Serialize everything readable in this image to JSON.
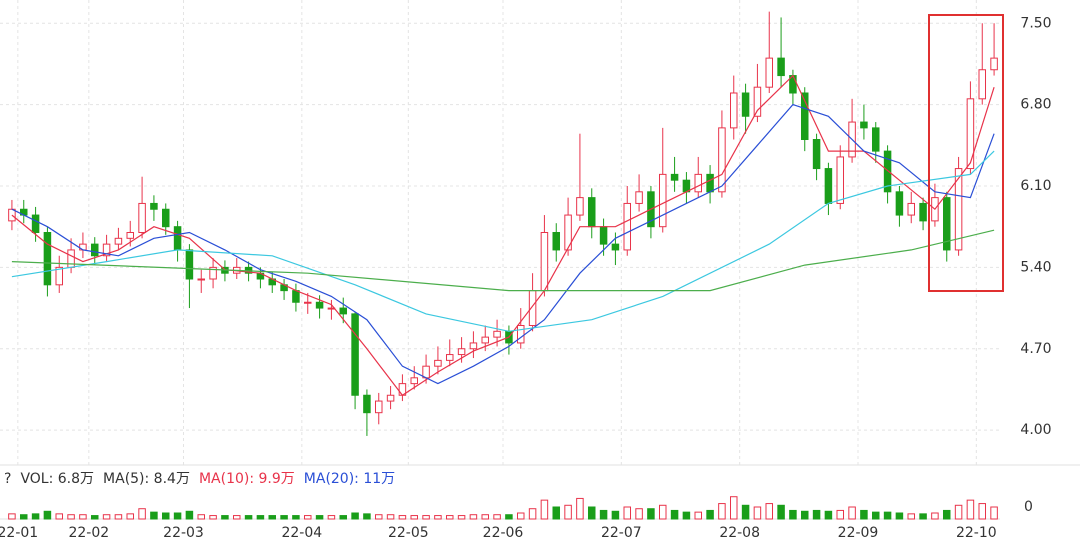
{
  "chart_data": {
    "type": "candlestick",
    "up_color": "#e8334a",
    "down_color": "#1a9e1a",
    "open": [
      5.8,
      5.9,
      5.85,
      5.7,
      5.25,
      5.4,
      5.55,
      5.6,
      5.5,
      5.6,
      5.65,
      5.7,
      5.95,
      5.9,
      5.75,
      5.55,
      5.3,
      5.3,
      5.4,
      5.35,
      5.4,
      5.35,
      5.3,
      5.25,
      5.2,
      5.1,
      5.1,
      5.05,
      5.05,
      5.0,
      4.3,
      4.15,
      4.25,
      4.3,
      4.4,
      4.45,
      4.55,
      4.6,
      4.65,
      4.7,
      4.75,
      4.8,
      4.85,
      4.75,
      4.9,
      5.2,
      5.7,
      5.55,
      5.85,
      6.0,
      5.75,
      5.6,
      5.55,
      5.95,
      6.05,
      5.75,
      6.2,
      6.15,
      6.05,
      6.2,
      6.05,
      6.6,
      6.9,
      6.7,
      6.95,
      7.2,
      7.05,
      6.9,
      6.5,
      6.25,
      5.95,
      6.35,
      6.65,
      6.6,
      6.4,
      6.05,
      5.85,
      5.95,
      5.8,
      6.0,
      5.55,
      6.25,
      6.85,
      7.1
    ],
    "high": [
      5.98,
      5.98,
      5.92,
      5.75,
      5.5,
      5.65,
      5.7,
      5.66,
      5.68,
      5.74,
      5.8,
      6.18,
      6.02,
      5.95,
      5.8,
      5.6,
      5.38,
      5.48,
      5.46,
      5.48,
      5.45,
      5.4,
      5.36,
      5.3,
      5.26,
      5.18,
      5.16,
      5.12,
      5.14,
      5.02,
      4.35,
      4.32,
      4.38,
      4.48,
      4.55,
      4.65,
      4.72,
      4.78,
      4.8,
      4.85,
      4.9,
      4.95,
      4.9,
      5.05,
      5.35,
      5.85,
      5.78,
      6.0,
      6.55,
      6.08,
      5.82,
      5.7,
      6.1,
      6.2,
      6.1,
      6.6,
      6.35,
      6.22,
      6.35,
      6.28,
      6.75,
      7.05,
      6.98,
      7.15,
      7.6,
      7.55,
      7.1,
      6.95,
      6.55,
      6.3,
      6.45,
      6.85,
      6.8,
      6.65,
      6.45,
      6.1,
      6.05,
      6.0,
      6.12,
      6.05,
      6.35,
      7.0,
      7.5,
      7.5
    ],
    "low": [
      5.72,
      5.78,
      5.62,
      5.15,
      5.18,
      5.35,
      5.48,
      5.42,
      5.45,
      5.55,
      5.58,
      5.65,
      5.8,
      5.68,
      5.45,
      5.05,
      5.18,
      5.22,
      5.28,
      5.3,
      5.28,
      5.22,
      5.18,
      5.12,
      5.02,
      5.0,
      4.96,
      4.95,
      4.92,
      4.18,
      3.95,
      4.05,
      4.18,
      4.25,
      4.35,
      4.4,
      4.48,
      4.55,
      4.58,
      4.62,
      4.68,
      4.72,
      4.65,
      4.7,
      4.85,
      5.15,
      5.45,
      5.5,
      5.8,
      5.65,
      5.5,
      5.42,
      5.5,
      5.88,
      5.65,
      5.7,
      6.05,
      5.95,
      6.0,
      5.95,
      6.0,
      6.5,
      6.55,
      6.65,
      6.9,
      6.95,
      6.8,
      6.4,
      6.15,
      5.85,
      5.9,
      6.3,
      6.5,
      6.3,
      5.95,
      5.75,
      5.78,
      5.72,
      5.75,
      5.45,
      5.5,
      6.2,
      6.8,
      7.05
    ],
    "close": [
      5.9,
      5.85,
      5.7,
      5.25,
      5.4,
      5.55,
      5.6,
      5.5,
      5.6,
      5.65,
      5.7,
      5.95,
      5.9,
      5.75,
      5.55,
      5.3,
      5.3,
      5.4,
      5.35,
      5.4,
      5.35,
      5.3,
      5.25,
      5.2,
      5.1,
      5.1,
      5.05,
      5.05,
      5.0,
      4.3,
      4.15,
      4.25,
      4.3,
      4.4,
      4.45,
      4.55,
      4.6,
      4.65,
      4.7,
      4.75,
      4.8,
      4.85,
      4.75,
      4.9,
      5.2,
      5.7,
      5.55,
      5.85,
      6.0,
      5.75,
      5.6,
      5.55,
      5.95,
      6.05,
      5.75,
      6.2,
      6.15,
      6.05,
      6.2,
      6.05,
      6.6,
      6.9,
      6.7,
      6.95,
      7.2,
      7.05,
      6.9,
      6.5,
      6.25,
      5.95,
      6.35,
      6.65,
      6.6,
      6.4,
      6.05,
      5.85,
      5.95,
      5.8,
      6.0,
      5.55,
      6.25,
      6.85,
      7.1,
      7.2
    ],
    "volume": [
      6,
      5,
      6,
      9,
      6,
      5,
      5,
      4,
      5,
      5,
      6,
      12,
      8,
      7,
      7,
      9,
      5,
      4,
      4,
      4,
      4,
      4,
      4,
      4,
      4,
      4,
      4,
      4,
      4,
      7,
      6,
      5,
      5,
      4,
      4,
      4,
      4,
      4,
      4,
      5,
      5,
      5,
      5,
      7,
      12,
      22,
      14,
      16,
      24,
      14,
      10,
      9,
      14,
      12,
      12,
      16,
      10,
      8,
      8,
      10,
      18,
      26,
      16,
      14,
      18,
      16,
      10,
      9,
      10,
      9,
      10,
      14,
      10,
      8,
      8,
      7,
      6,
      6,
      7,
      10,
      16,
      22,
      18,
      14
    ],
    "xlim": [
      0,
      84
    ],
    "xticks": [
      {
        "value": 1,
        "label": "22-01"
      },
      {
        "value": 7,
        "label": "22-02"
      },
      {
        "value": 15,
        "label": "22-03"
      },
      {
        "value": 25,
        "label": "22-04"
      },
      {
        "value": 34,
        "label": "22-05"
      },
      {
        "value": 42,
        "label": "22-06"
      },
      {
        "value": 52,
        "label": "22-07"
      },
      {
        "value": 62,
        "label": "22-08"
      },
      {
        "value": 72,
        "label": "22-09"
      },
      {
        "value": 82,
        "label": "22-10"
      }
    ],
    "ylim": [
      3.7,
      7.7
    ],
    "yticks": [
      {
        "value": 7.5,
        "label": "7.50"
      },
      {
        "value": 6.8,
        "label": "6.80"
      },
      {
        "value": 6.1,
        "label": "6.10"
      },
      {
        "value": 5.4,
        "label": "5.40"
      },
      {
        "value": 4.7,
        "label": "4.70"
      },
      {
        "value": 4.0,
        "label": "4.00"
      }
    ],
    "grid": true,
    "lines": [
      {
        "color": "#e8334a",
        "x": [
          0,
          3,
          6,
          9,
          12,
          15,
          18,
          21,
          24,
          27,
          30,
          33,
          36,
          39,
          42,
          45,
          48,
          51,
          54,
          57,
          60,
          63,
          66,
          69,
          72,
          75,
          78,
          81,
          83
        ],
        "values": [
          5.85,
          5.6,
          5.45,
          5.55,
          5.75,
          5.65,
          5.38,
          5.35,
          5.2,
          5.08,
          4.7,
          4.3,
          4.5,
          4.68,
          4.8,
          5.2,
          5.75,
          5.75,
          5.9,
          6.05,
          6.2,
          6.75,
          7.05,
          6.4,
          6.4,
          6.15,
          5.9,
          6.3,
          6.95
        ]
      },
      {
        "color": "#2a4fd6",
        "x": [
          0,
          3,
          6,
          9,
          12,
          15,
          18,
          21,
          24,
          27,
          30,
          33,
          36,
          39,
          42,
          45,
          48,
          51,
          54,
          57,
          60,
          63,
          66,
          69,
          72,
          75,
          78,
          81,
          83
        ],
        "values": [
          5.9,
          5.75,
          5.55,
          5.5,
          5.65,
          5.7,
          5.55,
          5.38,
          5.28,
          5.15,
          4.95,
          4.55,
          4.4,
          4.55,
          4.72,
          4.95,
          5.35,
          5.65,
          5.8,
          5.95,
          6.1,
          6.45,
          6.8,
          6.7,
          6.4,
          6.3,
          6.05,
          6.0,
          6.55
        ]
      },
      {
        "color": "#3cc8e0",
        "x": [
          0,
          8,
          14,
          22,
          29,
          35,
          42,
          49,
          55,
          64,
          69,
          74,
          81,
          83
        ],
        "values": [
          5.32,
          5.45,
          5.55,
          5.5,
          5.25,
          5.0,
          4.85,
          4.95,
          5.15,
          5.6,
          5.95,
          6.1,
          6.2,
          6.4
        ]
      },
      {
        "color": "#4cae4c",
        "x": [
          0,
          25,
          42,
          59,
          67,
          76,
          83
        ],
        "values": [
          5.45,
          5.35,
          5.2,
          5.2,
          5.42,
          5.55,
          5.72
        ]
      }
    ],
    "volume_ylim": [
      0,
      35
    ],
    "volume_yticks": [
      0
    ],
    "volume_legend": [
      {
        "text": "?",
        "color": "#333333"
      },
      {
        "text": "VOL: 6.8万",
        "color": "#333333"
      },
      {
        "text": "MA(5): 8.4万",
        "color": "#333333"
      },
      {
        "text": "MA(10): 9.9万",
        "color": "#e8334a"
      },
      {
        "text": "MA(20): 11万",
        "color": "#2a4fd6"
      }
    ]
  }
}
